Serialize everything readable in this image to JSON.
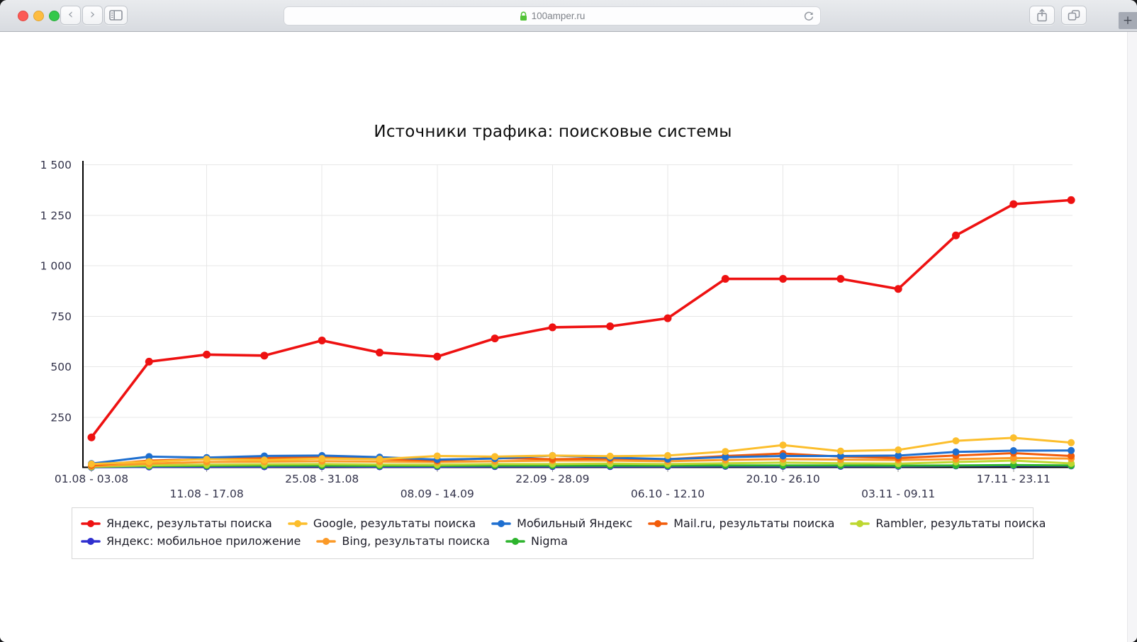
{
  "browser": {
    "url": "100amper.ru",
    "back_glyph": "‹",
    "forward_glyph": "›",
    "new_tab_glyph": "+",
    "icons": {
      "lock": "green-padlock",
      "reload": "circular-arrow",
      "sidebar": "sidebar-panel",
      "share": "square-with-up-arrow",
      "tabs": "overlapping-squares"
    }
  },
  "chart_data": {
    "type": "line",
    "title": "Источники трафика: поисковые системы",
    "x_tick_labels": [
      "01.08 - 03.08",
      "11.08 - 17.08",
      "25.08 - 31.08",
      "08.09 - 14.09",
      "22.09 - 28.09",
      "06.10 - 12.10",
      "20.10 - 26.10",
      "03.11 - 09.11",
      "17.11 - 23.11"
    ],
    "x_tick_point_indices": [
      0,
      2,
      4,
      6,
      8,
      10,
      12,
      14,
      16
    ],
    "x_tick_label_rows": [
      1,
      2,
      1,
      2,
      1,
      2,
      1,
      2,
      1
    ],
    "vertical_grid_point_indices": [
      2,
      4,
      6,
      8,
      10,
      12,
      14,
      16
    ],
    "num_points": 18,
    "y_axis": {
      "min": 0,
      "max": 1500,
      "tick_step": 250,
      "tick_labels": [
        "250",
        "500",
        "750",
        "1 000",
        "1 250",
        "1 500"
      ]
    },
    "grid": {
      "horizontal": true,
      "vertical": true
    },
    "legend": {
      "position": "bottom",
      "rows": [
        [
          0,
          1,
          2,
          3,
          4
        ],
        [
          5,
          6,
          7
        ]
      ]
    },
    "draw_order": [
      5,
      7,
      4,
      6,
      3,
      2,
      1,
      0
    ],
    "series": [
      {
        "name": "Яндекс, результаты поиска",
        "color": "#ee1111",
        "values": [
          150,
          525,
          560,
          555,
          630,
          570,
          550,
          640,
          695,
          700,
          740,
          935,
          935,
          935,
          885,
          1150,
          1305,
          1325
        ]
      },
      {
        "name": "Google, результаты поиска",
        "color": "#fcbe2c",
        "values": [
          18,
          30,
          42,
          38,
          45,
          42,
          58,
          55,
          60,
          57,
          60,
          80,
          112,
          82,
          88,
          133,
          148,
          124
        ]
      },
      {
        "name": "Мобильный Яндекс",
        "color": "#1e6fd0",
        "values": [
          20,
          55,
          50,
          58,
          60,
          52,
          40,
          45,
          60,
          50,
          42,
          52,
          58,
          58,
          60,
          78,
          84,
          85
        ]
      },
      {
        "name": "Mail.ru, результаты поиска",
        "color": "#f25c0a",
        "values": [
          12,
          35,
          42,
          48,
          52,
          42,
          35,
          48,
          42,
          45,
          42,
          58,
          70,
          55,
          48,
          60,
          72,
          58
        ]
      },
      {
        "name": "Rambler, результаты поиска",
        "color": "#bdd730",
        "values": [
          5,
          12,
          15,
          17,
          18,
          16,
          15,
          18,
          18,
          20,
          18,
          22,
          25,
          22,
          20,
          28,
          35,
          21
        ]
      },
      {
        "name": "Яндекс: мобильное приложение",
        "color": "#3030cf",
        "values": [
          2,
          4,
          5,
          5,
          6,
          5,
          5,
          6,
          6,
          6,
          6,
          7,
          7,
          7,
          7,
          9,
          10,
          9
        ]
      },
      {
        "name": "Bing, результаты поиска",
        "color": "#fb9a28",
        "values": [
          8,
          20,
          28,
          30,
          32,
          30,
          28,
          32,
          35,
          35,
          32,
          38,
          42,
          40,
          38,
          42,
          48,
          45
        ]
      },
      {
        "name": "Nigma",
        "color": "#2eb42e",
        "values": [
          4,
          8,
          9,
          10,
          10,
          9,
          9,
          10,
          10,
          10,
          10,
          11,
          11,
          11,
          10,
          11,
          13,
          11
        ]
      }
    ],
    "styles": {
      "grid_color": "#e7e7e7",
      "axis_color": "#000000",
      "tick_color": "#9a9a9a",
      "axis_label_color": "#32324a",
      "title_color": "#0c0c0c"
    }
  }
}
